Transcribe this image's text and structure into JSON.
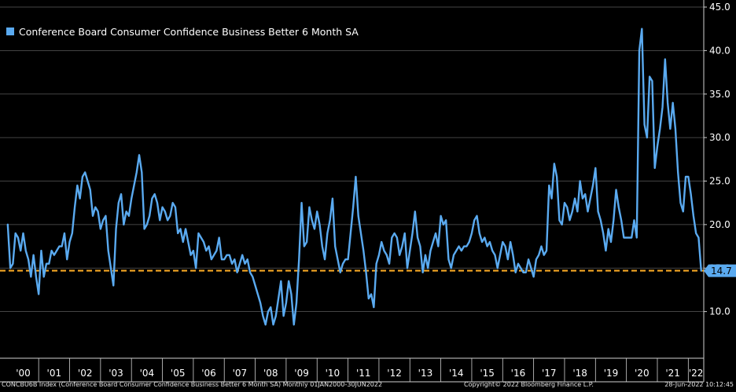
{
  "chart_data": {
    "type": "line",
    "title": "",
    "legend": "Conference Board Consumer Confidence Business Better 6 Month SA",
    "legend_position": "top-left",
    "series": [
      {
        "name": "Conference Board Consumer Confidence Business Better 6 Month SA",
        "color": "#5aaaf0",
        "x_start": 2000.0,
        "step": 0.0833333,
        "values": [
          20.0,
          15.0,
          15.5,
          19.0,
          18.5,
          17.0,
          19.0,
          17.0,
          16.0,
          14.0,
          16.5,
          14.0,
          12.0,
          17.0,
          14.0,
          15.5,
          15.5,
          17.0,
          16.5,
          17.0,
          17.5,
          17.5,
          19.0,
          16.0,
          18.0,
          19.0,
          22.0,
          24.5,
          23.0,
          25.5,
          26.0,
          25.0,
          24.0,
          21.0,
          22.0,
          21.5,
          19.5,
          20.5,
          21.0,
          17.0,
          15.0,
          13.0,
          19.5,
          22.5,
          23.5,
          20.0,
          21.5,
          21.0,
          23.0,
          24.5,
          26.0,
          28.0,
          26.0,
          19.5,
          20.0,
          21.0,
          23.0,
          23.5,
          22.5,
          20.5,
          22.0,
          21.5,
          20.5,
          21.0,
          22.5,
          22.0,
          19.0,
          19.5,
          18.0,
          19.5,
          18.0,
          16.5,
          17.0,
          15.0,
          19.0,
          18.5,
          18.0,
          17.0,
          17.5,
          16.0,
          16.5,
          17.0,
          18.5,
          16.0,
          16.0,
          16.5,
          16.5,
          15.5,
          16.0,
          14.5,
          15.5,
          16.5,
          15.5,
          16.0,
          14.5,
          14.0,
          13.0,
          12.0,
          11.0,
          9.5,
          8.5,
          10.0,
          10.5,
          8.5,
          9.5,
          11.5,
          13.5,
          9.5,
          11.0,
          13.5,
          12.0,
          8.5,
          11.0,
          16.0,
          22.5,
          17.5,
          18.0,
          22.0,
          20.5,
          19.5,
          21.5,
          20.0,
          17.5,
          16.0,
          19.0,
          20.5,
          23.0,
          17.5,
          16.0,
          14.5,
          15.5,
          16.0,
          16.0,
          19.0,
          22.0,
          25.5,
          21.0,
          19.0,
          17.0,
          14.5,
          11.5,
          12.0,
          10.5,
          15.5,
          16.5,
          18.0,
          17.0,
          16.5,
          15.5,
          18.5,
          19.0,
          18.5,
          16.5,
          17.5,
          19.0,
          15.0,
          17.0,
          19.0,
          21.5,
          18.5,
          17.5,
          14.5,
          16.5,
          15.0,
          17.0,
          18.0,
          19.0,
          17.5,
          21.0,
          20.0,
          20.5,
          16.0,
          15.0,
          16.5,
          17.0,
          17.5,
          17.0,
          17.5,
          17.5,
          18.0,
          19.0,
          20.5,
          21.0,
          19.0,
          18.0,
          18.5,
          17.5,
          18.0,
          17.0,
          16.5,
          15.0,
          16.5,
          18.0,
          17.5,
          16.0,
          18.0,
          16.5,
          14.5,
          15.5,
          15.0,
          14.5,
          14.5,
          16.0,
          15.0,
          14.0,
          16.0,
          16.5,
          17.5,
          16.5,
          17.0,
          24.5,
          23.0,
          27.0,
          25.5,
          20.5,
          20.0,
          22.5,
          22.0,
          20.5,
          21.5,
          23.0,
          21.5,
          25.0,
          23.0,
          23.5,
          21.5,
          23.0,
          24.5,
          26.5,
          21.5,
          20.5,
          19.0,
          17.0,
          19.5,
          18.0,
          20.5,
          24.0,
          22.0,
          20.5,
          18.5,
          18.5,
          18.5,
          18.5,
          20.5,
          18.5,
          40.0,
          42.5,
          31.5,
          30.0,
          37.0,
          36.5,
          26.5,
          29.0,
          31.0,
          33.5,
          39.0,
          34.0,
          31.0,
          34.0,
          31.0,
          26.0,
          22.5,
          21.5,
          25.5,
          25.5,
          23.5,
          21.0,
          19.0,
          18.5,
          14.7
        ]
      }
    ],
    "last_value": 14.7,
    "reference_line": {
      "value": 14.7,
      "color": "#f5a623",
      "style": "dashed"
    },
    "ylim": [
      5.0,
      45.0
    ],
    "xlim": [
      1999.75,
      2022.5
    ],
    "y_ticks": [
      10.0,
      15.0,
      20.0,
      25.0,
      30.0,
      35.0,
      40.0,
      45.0
    ],
    "y_tick_labels": [
      "10.0",
      "15.0",
      "20.0",
      "25.0",
      "30.0",
      "35.0",
      "40.0",
      "45.0"
    ],
    "x_ticks": [
      2000,
      2001,
      2002,
      2003,
      2004,
      2005,
      2006,
      2007,
      2008,
      2009,
      2010,
      2011,
      2012,
      2013,
      2014,
      2015,
      2016,
      2017,
      2018,
      2019,
      2020,
      2021,
      2022
    ],
    "x_tick_labels": [
      "'00",
      "'01",
      "'02",
      "'03",
      "'04",
      "'05",
      "'06",
      "'07",
      "'08",
      "'09",
      "'10",
      "'11",
      "'12",
      "'13",
      "'14",
      "'15",
      "'16",
      "'17",
      "'18",
      "'19",
      "'20",
      "'21",
      "'22"
    ],
    "ylabel": "",
    "xlabel": "",
    "grid": true,
    "last_value_label": "14.7"
  },
  "footer": {
    "index": "CONCBU6B Index (Conference Board Consumer Confidence Business Better 6 Month SA)  Monthly 01JAN2000-30JUN2022",
    "copyright": "Copyright© 2022 Bloomberg Finance L.P.",
    "timestamp": "28-Jun-2022 10:12:45"
  },
  "colors": {
    "background": "#000000",
    "line": "#5aaaf0",
    "grid": "#5a5a5a",
    "reference": "#f5a623",
    "badge": "#5aaaf0"
  }
}
